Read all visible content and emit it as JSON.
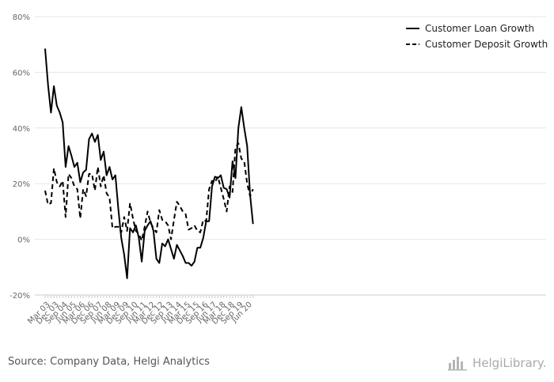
{
  "source": "Source: Company Data, Helgi Analytics",
  "brand": {
    "name": "HelgiLibrary.",
    "icon": "bar-chart-logo-icon"
  },
  "colors": {
    "line": "#000000",
    "grid": "#e6e6e6",
    "axis": "#cccccc",
    "text": "#666666"
  },
  "chart_data": {
    "type": "line",
    "title": "",
    "xlabel": "",
    "ylabel": "",
    "ylim": [
      -20,
      80
    ],
    "y_ticks": [
      "-20%",
      "0%",
      "20%",
      "40%",
      "60%",
      "80%"
    ],
    "y_tick_values": [
      -20,
      0,
      20,
      40,
      60,
      80
    ],
    "x_tick_labels": [
      "Mar 03",
      "Dec 03",
      "Sep 04",
      "Jun 05",
      "Mar 06",
      "Dec 06",
      "Sep 07",
      "Jun 08",
      "Mar 09",
      "Dec 09",
      "Sep 10",
      "Jun 11",
      "Mar 12",
      "Dec 12",
      "Sep 13",
      "Jun 14",
      "Mar 15",
      "Dec 15",
      "Sep 16",
      "Jun 17",
      "Mar 18",
      "Dec 18",
      "Sep 19",
      "Jun 20"
    ],
    "grid": true,
    "legend_position": "top-right",
    "x": [
      "Mar 03",
      "Jun 03",
      "Sep 03",
      "Dec 03",
      "Mar 04",
      "Jun 04",
      "Sep 04",
      "Dec 04",
      "Mar 05",
      "Jun 05",
      "Sep 05",
      "Dec 05",
      "Mar 06",
      "Jun 06",
      "Sep 06",
      "Dec 06",
      "Mar 07",
      "Jun 07",
      "Sep 07",
      "Dec 07",
      "Mar 08",
      "Jun 08",
      "Sep 08",
      "Dec 08",
      "Mar 09",
      "Jun 09",
      "Sep 09",
      "Dec 09",
      "Mar 10",
      "Jun 10",
      "Sep 10",
      "Dec 10",
      "Mar 11",
      "Jun 11",
      "Sep 11",
      "Dec 11",
      "Mar 12",
      "Jun 12",
      "Sep 12",
      "Dec 12",
      "Mar 13",
      "Jun 13",
      "Sep 13",
      "Dec 13",
      "Mar 14",
      "Jun 14",
      "Sep 14",
      "Dec 14",
      "Mar 15",
      "Jun 15",
      "Sep 15",
      "Dec 15",
      "Mar 16",
      "Jun 16",
      "Sep 16",
      "Dec 16",
      "Mar 17",
      "Jun 17",
      "Sep 17",
      "Dec 17",
      "Mar 18",
      "Jun 18",
      "Sep 18",
      "Dec 18",
      "Mar 19",
      "Jun 19",
      "Sep 19",
      "Dec 19",
      "Mar 20",
      "Jun 20",
      "Sep 20",
      "Dec 20"
    ],
    "series": [
      {
        "name": "Customer Loan Growth",
        "style": "solid",
        "values": [
          68.5,
          55.5,
          45.5,
          55,
          48,
          45.5,
          42,
          26,
          33.5,
          30,
          26,
          27.5,
          20.5,
          24,
          25,
          36,
          38,
          35,
          37.5,
          28.5,
          31.5,
          23,
          26,
          21.5,
          23,
          11,
          0.5,
          -5.5,
          -14,
          4,
          2.5,
          5,
          0.5,
          -8,
          3,
          5,
          6.5,
          3,
          -7,
          -8.5,
          -1.5,
          -2.5,
          0,
          -3.5,
          -7,
          -2,
          -4,
          -6,
          -8.5,
          -8.5,
          -9.5,
          -8,
          -3,
          -3,
          0.5,
          6.5,
          6.5,
          19,
          22.5,
          22,
          23,
          18.5,
          18,
          15,
          28,
          22,
          40,
          47.5,
          40,
          33.5,
          16,
          5.5
        ]
      },
      {
        "name": "Customer Deposit Growth",
        "style": "dashed",
        "values": [
          17.5,
          12.5,
          13,
          25.5,
          20.5,
          19,
          21,
          8,
          23.5,
          22,
          19,
          18,
          7.5,
          18,
          15.5,
          23.5,
          23.5,
          17.5,
          26,
          19,
          23,
          16.5,
          15,
          4,
          4.5,
          4.5,
          2.5,
          8,
          3,
          13,
          7.5,
          3,
          2,
          -0.5,
          4.5,
          10,
          6,
          4,
          2.5,
          10.5,
          7,
          6.5,
          5,
          0,
          7,
          13.5,
          12,
          10,
          9,
          3.5,
          4,
          5,
          3,
          2.5,
          7,
          6.5,
          18,
          21,
          20.5,
          22.5,
          18.5,
          14.5,
          10,
          19,
          17,
          33,
          34.5,
          29,
          28,
          20,
          15.5,
          18
        ]
      }
    ]
  }
}
